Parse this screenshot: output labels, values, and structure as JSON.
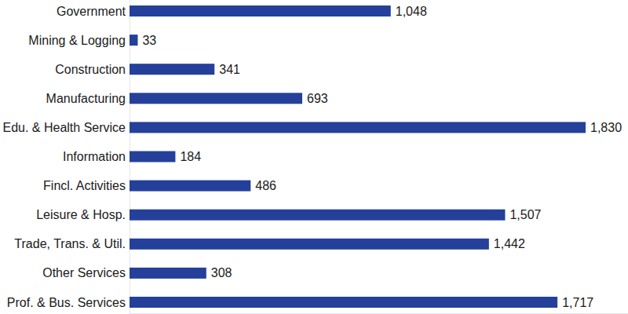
{
  "chart_data": {
    "type": "bar",
    "orientation": "horizontal",
    "categories": [
      "Government",
      "Mining & Logging",
      "Construction",
      "Manufacturing",
      "Edu. & Health Service",
      "Information",
      "Fincl. Activities",
      "Leisure & Hosp.",
      "Trade, Trans. & Util.",
      "Other Services",
      "Prof. & Bus. Services"
    ],
    "values": [
      1048,
      33,
      341,
      693,
      1830,
      184,
      486,
      1507,
      1442,
      308,
      1717
    ],
    "value_labels": [
      "1,048",
      "33",
      "341",
      "693",
      "1,830",
      "184",
      "486",
      "1,507",
      "1,442",
      "308",
      "1,717"
    ],
    "color": "#24409a",
    "xlim": [
      0,
      2000
    ],
    "grid": false,
    "data_labels": true,
    "tick_labels": "y"
  }
}
